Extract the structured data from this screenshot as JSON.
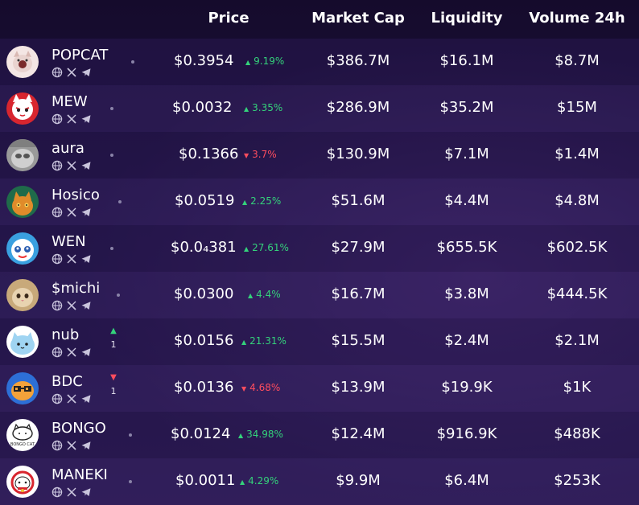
{
  "columns": {
    "price": "Price",
    "market_cap": "Market Cap",
    "liquidity": "Liquidity",
    "volume_24h": "Volume 24h"
  },
  "colors": {
    "positive": "#34d27b",
    "negative": "#ff4d5e"
  },
  "tokens": [
    {
      "name": "POPCAT",
      "price": "$0.3954",
      "change": "9.19%",
      "direction": "up",
      "market_cap": "$386.7M",
      "liquidity": "$16.1M",
      "volume": "$8.7M",
      "avatar": "popcat"
    },
    {
      "name": "MEW",
      "price": "$0.0032",
      "change": "3.35%",
      "direction": "up",
      "market_cap": "$286.9M",
      "liquidity": "$35.2M",
      "volume": "$15M",
      "avatar": "mew"
    },
    {
      "name": "aura",
      "price": "$0.1366",
      "change": "3.7%",
      "direction": "down",
      "market_cap": "$130.9M",
      "liquidity": "$7.1M",
      "volume": "$1.4M",
      "avatar": "aura"
    },
    {
      "name": "Hosico",
      "price": "$0.0519",
      "change": "2.25%",
      "direction": "up",
      "market_cap": "$51.6M",
      "liquidity": "$4.4M",
      "volume": "$4.8M",
      "avatar": "hosico"
    },
    {
      "name": "WEN",
      "price": "$0.0₄381",
      "change": "27.61%",
      "direction": "up",
      "market_cap": "$27.9M",
      "liquidity": "$655.5K",
      "volume": "$602.5K",
      "avatar": "wen"
    },
    {
      "name": "$michi",
      "price": "$0.0300",
      "change": "4.4%",
      "direction": "up",
      "market_cap": "$16.7M",
      "liquidity": "$3.8M",
      "volume": "$444.5K",
      "avatar": "michi"
    },
    {
      "name": "nub",
      "price": "$0.0156",
      "change": "21.31%",
      "direction": "up",
      "market_cap": "$15.5M",
      "liquidity": "$2.4M",
      "volume": "$2.1M",
      "avatar": "nub",
      "rank_change": "1",
      "rank_direction": "up"
    },
    {
      "name": "BDC",
      "price": "$0.0136",
      "change": "4.68%",
      "direction": "down",
      "market_cap": "$13.9M",
      "liquidity": "$19.9K",
      "volume": "$1K",
      "avatar": "bdc",
      "rank_change": "1",
      "rank_direction": "down"
    },
    {
      "name": "BONGO",
      "price": "$0.0124",
      "change": "34.98%",
      "direction": "up",
      "market_cap": "$12.4M",
      "liquidity": "$916.9K",
      "volume": "$488K",
      "avatar": "bongo",
      "avatar_text": "BONGO CAT"
    },
    {
      "name": "MANEKI",
      "price": "$0.0011",
      "change": "4.29%",
      "direction": "up",
      "market_cap": "$9.9M",
      "liquidity": "$6.4M",
      "volume": "$253K",
      "avatar": "maneki"
    }
  ]
}
